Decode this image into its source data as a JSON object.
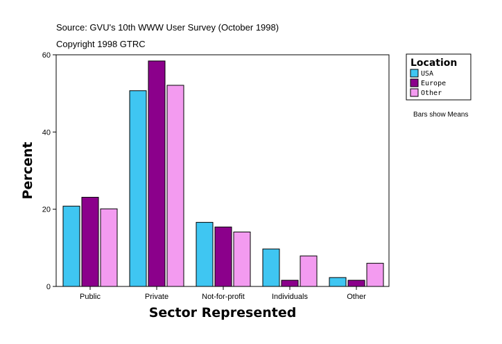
{
  "chart_data": {
    "type": "bar",
    "source_line": "Source: GVU's 10th WWW User Survey (October 1998)",
    "copyright_line": "Copyright 1998 GTRC",
    "categories": [
      "Public",
      "Private",
      "Not-for-profit",
      "Individuals",
      "Other"
    ],
    "series": [
      {
        "name": "USA",
        "color": "#3fc6f2",
        "values": [
          20.8,
          50.7,
          16.6,
          9.7,
          2.3
        ]
      },
      {
        "name": "Europe",
        "color": "#8b008b",
        "values": [
          23.1,
          58.4,
          15.4,
          1.6,
          1.6
        ]
      },
      {
        "name": "Other",
        "color": "#f39bf0",
        "values": [
          20.1,
          52.1,
          14.1,
          7.9,
          6.0
        ]
      }
    ],
    "xlabel": "Sector Represented",
    "ylabel": "Percent",
    "ylim": [
      0,
      60
    ],
    "yticks": [
      "0",
      "20",
      "40",
      "60"
    ],
    "legend_title": "Location",
    "legend_position": "right",
    "note": "Bars show Means"
  }
}
